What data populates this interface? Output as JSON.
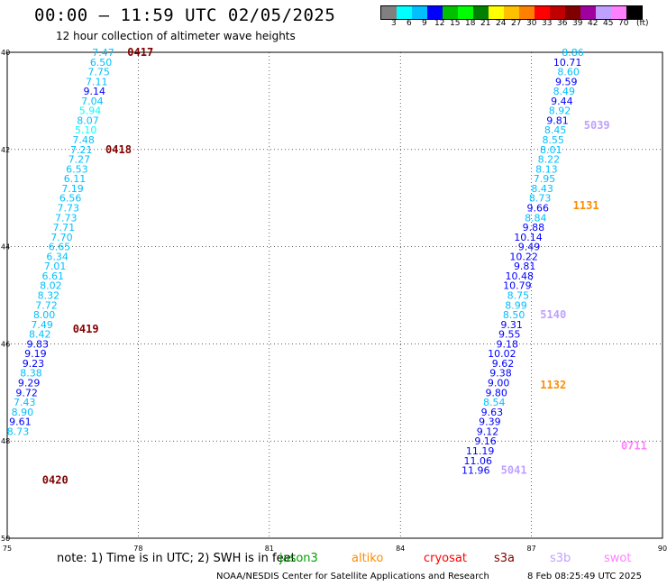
{
  "header": {
    "title": "00:00 — 11:59 UTC 02/05/2025",
    "subtitle": "12 hour collection of altimeter wave heights"
  },
  "legend": {
    "unit": "(ft)",
    "colors": [
      "#808080",
      "#00ffff",
      "#00c0ff",
      "#0000ff",
      "#00c000",
      "#00ff00",
      "#008000",
      "#ffff00",
      "#ffc000",
      "#ff8000",
      "#ff0000",
      "#c00000",
      "#800000",
      "#a000a0",
      "#c0a0ff",
      "#ff80ff",
      "#000000"
    ],
    "labels": [
      "3",
      "6",
      "9",
      "12",
      "15",
      "18",
      "21",
      "24",
      "27",
      "30",
      "33",
      "36",
      "39",
      "42",
      "45",
      "70"
    ]
  },
  "axes": {
    "x_ticks": [
      "75",
      "78",
      "81",
      "84",
      "87",
      "90"
    ],
    "y_ticks": [
      "40",
      "42",
      "44",
      "46",
      "48",
      "50"
    ]
  },
  "note": {
    "text": "note: 1) Time is in UTC; 2) SWH is in feet",
    "satellites": [
      {
        "name": "jason3",
        "color": "#00a000"
      },
      {
        "name": "altiko",
        "color": "#ff8c00"
      },
      {
        "name": "cryosat",
        "color": "#ff0000"
      },
      {
        "name": "s3a",
        "color": "#800000"
      },
      {
        "name": "s3b",
        "color": "#c0a0ff"
      },
      {
        "name": "swot",
        "color": "#ff80ff"
      }
    ]
  },
  "footer": {
    "credit": "NOAA/NESDIS Center for Satellite Applications and Research",
    "timestamp": "8 Feb 08:25:49 UTC 2025"
  },
  "orbits": [
    {
      "label": "0417",
      "color": "#800000",
      "lon": 77.75,
      "lat": 40.0
    },
    {
      "label": "0418",
      "color": "#800000",
      "lon": 77.25,
      "lat": 42.0
    },
    {
      "label": "0419",
      "color": "#800000",
      "lon": 76.5,
      "lat": 45.7
    },
    {
      "label": "0420",
      "color": "#800000",
      "lon": 75.8,
      "lat": 48.8
    },
    {
      "label": "1131",
      "color": "#ff8c00",
      "lon": 87.95,
      "lat": 43.15
    },
    {
      "label": "1132",
      "color": "#ff8c00",
      "lon": 87.2,
      "lat": 46.85
    },
    {
      "label": "0711",
      "color": "#ff80ff",
      "lon": 89.05,
      "lat": 48.1
    },
    {
      "label": "5041",
      "color": "#c0a0ff",
      "lon": 86.3,
      "lat": 48.6
    },
    {
      "label": "5140",
      "color": "#c0a0ff",
      "lon": 87.2,
      "lat": 45.4
    },
    {
      "label": "5039",
      "color": "#c0a0ff",
      "lon": 88.2,
      "lat": 41.5
    }
  ],
  "tracks": [
    {
      "name": "track-a",
      "values": [
        {
          "v": "7.47",
          "lon": 77.45,
          "lat": 40.0
        },
        {
          "v": "6.50",
          "lon": 77.4,
          "lat": 40.2
        },
        {
          "v": "7.75",
          "lon": 77.35,
          "lat": 40.4
        },
        {
          "v": "7.11",
          "lon": 77.3,
          "lat": 40.6
        },
        {
          "v": "9.14",
          "lon": 77.25,
          "lat": 40.8
        },
        {
          "v": "7.04",
          "lon": 77.2,
          "lat": 41.0
        },
        {
          "v": "5.94",
          "lon": 77.15,
          "lat": 41.2
        },
        {
          "v": "8.07",
          "lon": 77.1,
          "lat": 41.4
        },
        {
          "v": "5.10",
          "lon": 77.05,
          "lat": 41.6
        },
        {
          "v": "7.48",
          "lon": 77.0,
          "lat": 41.8
        },
        {
          "v": "7.21",
          "lon": 76.95,
          "lat": 42.0
        },
        {
          "v": "7.27",
          "lon": 76.9,
          "lat": 42.2
        },
        {
          "v": "6.53",
          "lon": 76.85,
          "lat": 42.4
        },
        {
          "v": "6.11",
          "lon": 76.8,
          "lat": 42.6
        },
        {
          "v": "7.19",
          "lon": 76.75,
          "lat": 42.8
        },
        {
          "v": "6.56",
          "lon": 76.7,
          "lat": 43.0
        },
        {
          "v": "7.73",
          "lon": 76.65,
          "lat": 43.2
        },
        {
          "v": "7.73",
          "lon": 76.6,
          "lat": 43.4
        },
        {
          "v": "7.71",
          "lon": 76.55,
          "lat": 43.6
        },
        {
          "v": "7.70",
          "lon": 76.5,
          "lat": 43.8
        },
        {
          "v": "6.65",
          "lon": 76.45,
          "lat": 44.0
        },
        {
          "v": "6.34",
          "lon": 76.4,
          "lat": 44.2
        },
        {
          "v": "7.01",
          "lon": 76.35,
          "lat": 44.4
        },
        {
          "v": "6.61",
          "lon": 76.3,
          "lat": 44.6
        },
        {
          "v": "8.02",
          "lon": 76.25,
          "lat": 44.8
        },
        {
          "v": "8.32",
          "lon": 76.2,
          "lat": 45.0
        },
        {
          "v": "7.72",
          "lon": 76.15,
          "lat": 45.2
        },
        {
          "v": "8.00",
          "lon": 76.1,
          "lat": 45.4
        },
        {
          "v": "7.49",
          "lon": 76.05,
          "lat": 45.6
        },
        {
          "v": "8.42",
          "lon": 76.0,
          "lat": 45.8
        },
        {
          "v": "9.83",
          "lon": 75.95,
          "lat": 46.0
        },
        {
          "v": "9.19",
          "lon": 75.9,
          "lat": 46.2
        },
        {
          "v": "9.23",
          "lon": 75.85,
          "lat": 46.4
        },
        {
          "v": "8.38",
          "lon": 75.8,
          "lat": 46.6
        },
        {
          "v": "9.29",
          "lon": 75.75,
          "lat": 46.8
        },
        {
          "v": "9.72",
          "lon": 75.7,
          "lat": 47.0
        },
        {
          "v": "7.43",
          "lon": 75.65,
          "lat": 47.2
        },
        {
          "v": "8.90",
          "lon": 75.6,
          "lat": 47.4
        },
        {
          "v": "9.61",
          "lon": 75.55,
          "lat": 47.6
        },
        {
          "v": "8.73",
          "lon": 75.5,
          "lat": 47.8
        }
      ]
    },
    {
      "name": "track-b",
      "values": [
        {
          "v": "8.86",
          "lon": 88.2,
          "lat": 40.0
        },
        {
          "v": "10.71",
          "lon": 88.15,
          "lat": 40.2
        },
        {
          "v": "8.60",
          "lon": 88.1,
          "lat": 40.4
        },
        {
          "v": "9.59",
          "lon": 88.05,
          "lat": 40.6
        },
        {
          "v": "8.49",
          "lon": 88.0,
          "lat": 40.8
        },
        {
          "v": "9.44",
          "lon": 87.95,
          "lat": 41.0
        },
        {
          "v": "8.92",
          "lon": 87.9,
          "lat": 41.2
        },
        {
          "v": "9.81",
          "lon": 87.85,
          "lat": 41.4
        },
        {
          "v": "8.45",
          "lon": 87.8,
          "lat": 41.6
        },
        {
          "v": "8.55",
          "lon": 87.75,
          "lat": 41.8
        },
        {
          "v": "8.01",
          "lon": 87.7,
          "lat": 42.0
        },
        {
          "v": "8.22",
          "lon": 87.65,
          "lat": 42.2
        },
        {
          "v": "8.13",
          "lon": 87.6,
          "lat": 42.4
        },
        {
          "v": "7.95",
          "lon": 87.55,
          "lat": 42.6
        },
        {
          "v": "8.43",
          "lon": 87.5,
          "lat": 42.8
        },
        {
          "v": "8.73",
          "lon": 87.45,
          "lat": 43.0
        },
        {
          "v": "9.66",
          "lon": 87.4,
          "lat": 43.2
        },
        {
          "v": "8.84",
          "lon": 87.35,
          "lat": 43.4
        },
        {
          "v": "9.88",
          "lon": 87.3,
          "lat": 43.6
        },
        {
          "v": "10.14",
          "lon": 87.25,
          "lat": 43.8
        },
        {
          "v": "9.49",
          "lon": 87.2,
          "lat": 44.0
        },
        {
          "v": "10.22",
          "lon": 87.15,
          "lat": 44.2
        },
        {
          "v": "9.81",
          "lon": 87.1,
          "lat": 44.4
        },
        {
          "v": "10.48",
          "lon": 87.05,
          "lat": 44.6
        },
        {
          "v": "10.79",
          "lon": 87.0,
          "lat": 44.8
        },
        {
          "v": "8.75",
          "lon": 86.95,
          "lat": 45.0
        },
        {
          "v": "8.99",
          "lon": 86.9,
          "lat": 45.2
        },
        {
          "v": "8.50",
          "lon": 86.85,
          "lat": 45.4
        },
        {
          "v": "9.31",
          "lon": 86.8,
          "lat": 45.6
        },
        {
          "v": "9.55",
          "lon": 86.75,
          "lat": 45.8
        },
        {
          "v": "9.18",
          "lon": 86.7,
          "lat": 46.0
        },
        {
          "v": "10.02",
          "lon": 86.65,
          "lat": 46.2
        },
        {
          "v": "9.62",
          "lon": 86.6,
          "lat": 46.4
        },
        {
          "v": "9.38",
          "lon": 86.55,
          "lat": 46.6
        },
        {
          "v": "9.00",
          "lon": 86.5,
          "lat": 46.8
        },
        {
          "v": "9.80",
          "lon": 86.45,
          "lat": 47.0
        },
        {
          "v": "8.54",
          "lon": 86.4,
          "lat": 47.2
        },
        {
          "v": "9.63",
          "lon": 86.35,
          "lat": 47.4
        },
        {
          "v": "9.39",
          "lon": 86.3,
          "lat": 47.6
        },
        {
          "v": "9.12",
          "lon": 86.25,
          "lat": 47.8
        },
        {
          "v": "9.16",
          "lon": 86.2,
          "lat": 48.0
        },
        {
          "v": "11.19",
          "lon": 86.15,
          "lat": 48.2
        },
        {
          "v": "11.06",
          "lon": 86.1,
          "lat": 48.4
        },
        {
          "v": "11.96",
          "lon": 86.05,
          "lat": 48.6
        }
      ]
    }
  ]
}
